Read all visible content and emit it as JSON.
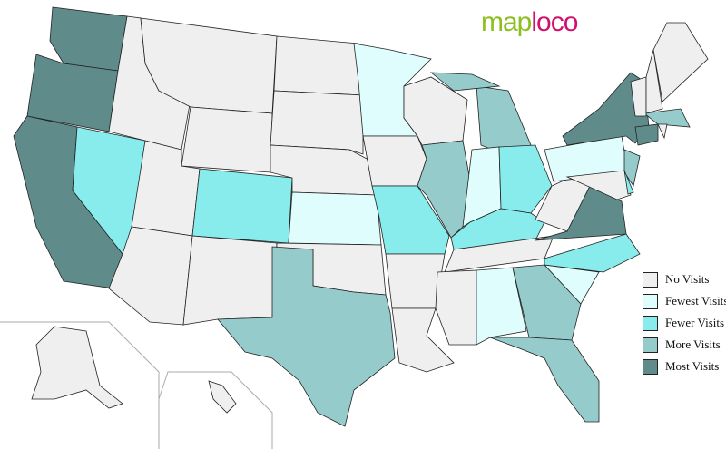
{
  "logo": {
    "part1": "map",
    "part2": "loco"
  },
  "legend": [
    {
      "key": "none",
      "label": "No Visits",
      "color": "#efefef"
    },
    {
      "key": "fewest",
      "label": "Fewest Visits",
      "color": "#e0fdfd"
    },
    {
      "key": "fewer",
      "label": "Fewer Visits",
      "color": "#88ecec"
    },
    {
      "key": "more",
      "label": "More Visits",
      "color": "#96cbcb"
    },
    {
      "key": "most",
      "label": "Most Visits",
      "color": "#5f8c8a"
    }
  ],
  "states": {
    "WA": "most",
    "OR": "most",
    "CA": "most",
    "NV": "fewer",
    "ID": "none",
    "MT": "none",
    "WY": "none",
    "UT": "none",
    "AZ": "none",
    "CO": "fewer",
    "NM": "none",
    "ND": "none",
    "SD": "none",
    "NE": "none",
    "KS": "fewest",
    "OK": "none",
    "TX": "more",
    "MN": "fewest",
    "IA": "none",
    "MO": "fewer",
    "AR": "none",
    "LA": "none",
    "WI": "none",
    "IL": "more",
    "MI": "more",
    "IN": "fewest",
    "OH": "fewer",
    "KY": "fewer",
    "TN": "none",
    "MS": "none",
    "AL": "fewest",
    "GA": "more",
    "FL": "more",
    "SC": "fewest",
    "NC": "fewer",
    "VA": "most",
    "WV": "none",
    "PA": "fewest",
    "NY": "most",
    "NJ": "more",
    "MD": "none",
    "DE": "fewer",
    "CT": "most",
    "MA": "more",
    "RI": "none",
    "VT": "none",
    "NH": "none",
    "ME": "none",
    "AK": "none",
    "HI": "none"
  }
}
